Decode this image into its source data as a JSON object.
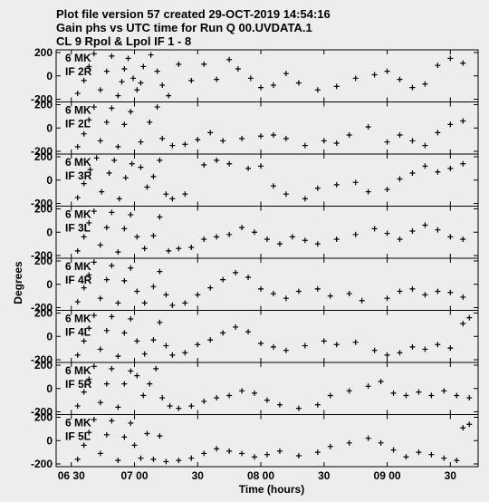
{
  "header": {
    "line1": "Plot file version 57  created 29-OCT-2019 14:54:16",
    "line2": "Gain phs vs UTC time for Run Q 00.UVDATA.1",
    "line3": "CL 9  Rpol & Lpol  IF 1 - 8"
  },
  "chart_data": {
    "type": "scatter",
    "marker": "plus",
    "marker_color": "#000000",
    "xlabel": "Time (hours)",
    "ylabel": "Degrees",
    "x_ticks": [
      "06 30",
      "07 00",
      "30",
      "08 00",
      "30",
      "09 00",
      "30"
    ],
    "x_tick_hours": [
      6.5,
      7.0,
      7.5,
      8.0,
      8.5,
      9.0,
      9.5
    ],
    "xlim": [
      6.38,
      9.72
    ],
    "ylim": [
      -200,
      200
    ],
    "y_ticks": [
      "200",
      "0",
      "-200"
    ],
    "panels": [
      {
        "antenna": "6 MK",
        "if_label": "IF 2R",
        "points": [
          [
            6.55,
            -150
          ],
          [
            6.6,
            -40
          ],
          [
            6.64,
            80
          ],
          [
            6.68,
            190
          ],
          [
            6.73,
            -120
          ],
          [
            6.78,
            40
          ],
          [
            6.82,
            170
          ],
          [
            6.87,
            -170
          ],
          [
            6.9,
            -50
          ],
          [
            6.92,
            60
          ],
          [
            6.95,
            150
          ],
          [
            6.99,
            -20
          ],
          [
            7.02,
            -120
          ],
          [
            7.05,
            -60
          ],
          [
            7.07,
            80
          ],
          [
            7.13,
            180
          ],
          [
            7.18,
            40
          ],
          [
            7.22,
            -80
          ],
          [
            7.27,
            -170
          ],
          [
            7.35,
            100
          ],
          [
            7.45,
            -40
          ],
          [
            7.55,
            100
          ],
          [
            7.65,
            -30
          ],
          [
            7.75,
            140
          ],
          [
            7.82,
            60
          ],
          [
            7.92,
            -20
          ],
          [
            8.0,
            -100
          ],
          [
            8.1,
            -80
          ],
          [
            8.2,
            20
          ],
          [
            8.3,
            -60
          ],
          [
            8.45,
            -120
          ],
          [
            8.6,
            -90
          ],
          [
            8.75,
            -20
          ],
          [
            8.9,
            10
          ],
          [
            9.0,
            40
          ],
          [
            9.1,
            -30
          ],
          [
            9.2,
            -100
          ],
          [
            9.3,
            -70
          ],
          [
            9.4,
            90
          ],
          [
            9.5,
            150
          ],
          [
            9.6,
            110
          ]
        ]
      },
      {
        "antenna": "6 MK",
        "if_label": "IF 2L",
        "points": [
          [
            6.55,
            -160
          ],
          [
            6.6,
            -50
          ],
          [
            6.64,
            70
          ],
          [
            6.68,
            180
          ],
          [
            6.73,
            -110
          ],
          [
            6.78,
            50
          ],
          [
            6.82,
            170
          ],
          [
            6.87,
            -160
          ],
          [
            6.92,
            30
          ],
          [
            6.97,
            140
          ],
          [
            7.05,
            -120
          ],
          [
            7.12,
            50
          ],
          [
            7.18,
            180
          ],
          [
            7.22,
            -90
          ],
          [
            7.3,
            -150
          ],
          [
            7.4,
            -140
          ],
          [
            7.5,
            -100
          ],
          [
            7.6,
            -40
          ],
          [
            7.7,
            -110
          ],
          [
            7.85,
            -90
          ],
          [
            8.0,
            -70
          ],
          [
            8.1,
            -60
          ],
          [
            8.2,
            -90
          ],
          [
            8.35,
            -150
          ],
          [
            8.5,
            -110
          ],
          [
            8.6,
            -130
          ],
          [
            8.7,
            -60
          ],
          [
            8.85,
            10
          ],
          [
            9.0,
            -120
          ],
          [
            9.1,
            -60
          ],
          [
            9.2,
            -110
          ],
          [
            9.3,
            -150
          ],
          [
            9.4,
            -40
          ],
          [
            9.5,
            30
          ],
          [
            9.6,
            60
          ]
        ]
      },
      {
        "antenna": "6 MK",
        "if_label": "IF 3R",
        "points": [
          [
            6.55,
            -150
          ],
          [
            6.6,
            -30
          ],
          [
            6.65,
            90
          ],
          [
            6.7,
            190
          ],
          [
            6.74,
            -100
          ],
          [
            6.8,
            60
          ],
          [
            6.84,
            170
          ],
          [
            6.88,
            -160
          ],
          [
            6.93,
            20
          ],
          [
            6.98,
            140
          ],
          [
            7.05,
            110
          ],
          [
            7.1,
            -60
          ],
          [
            7.15,
            30
          ],
          [
            7.2,
            170
          ],
          [
            7.25,
            -120
          ],
          [
            7.3,
            -160
          ],
          [
            7.4,
            -120
          ],
          [
            7.55,
            130
          ],
          [
            7.65,
            170
          ],
          [
            7.75,
            140
          ],
          [
            7.9,
            100
          ],
          [
            8.0,
            120
          ],
          [
            8.1,
            -50
          ],
          [
            8.2,
            -120
          ],
          [
            8.35,
            -160
          ],
          [
            8.45,
            -70
          ],
          [
            8.6,
            -40
          ],
          [
            8.75,
            -20
          ],
          [
            8.85,
            -100
          ],
          [
            9.0,
            -80
          ],
          [
            9.1,
            10
          ],
          [
            9.2,
            60
          ],
          [
            9.3,
            120
          ],
          [
            9.4,
            70
          ],
          [
            9.5,
            100
          ],
          [
            9.6,
            140
          ]
        ]
      },
      {
        "antenna": "6 MK",
        "if_label": "IF 3L",
        "points": [
          [
            6.55,
            -160
          ],
          [
            6.6,
            -40
          ],
          [
            6.64,
            80
          ],
          [
            6.68,
            180
          ],
          [
            6.73,
            -110
          ],
          [
            6.78,
            40
          ],
          [
            6.82,
            170
          ],
          [
            6.87,
            -170
          ],
          [
            6.92,
            30
          ],
          [
            6.97,
            150
          ],
          [
            7.02,
            -40
          ],
          [
            7.08,
            -140
          ],
          [
            7.15,
            -30
          ],
          [
            7.2,
            130
          ],
          [
            7.27,
            -160
          ],
          [
            7.35,
            -140
          ],
          [
            7.45,
            -130
          ],
          [
            7.55,
            -60
          ],
          [
            7.65,
            -40
          ],
          [
            7.75,
            -20
          ],
          [
            7.85,
            40
          ],
          [
            7.95,
            0
          ],
          [
            8.05,
            -60
          ],
          [
            8.15,
            -100
          ],
          [
            8.25,
            -40
          ],
          [
            8.35,
            -70
          ],
          [
            8.45,
            -100
          ],
          [
            8.6,
            -60
          ],
          [
            8.75,
            -20
          ],
          [
            8.9,
            30
          ],
          [
            9.0,
            -10
          ],
          [
            9.1,
            -60
          ],
          [
            9.2,
            10
          ],
          [
            9.3,
            60
          ],
          [
            9.4,
            20
          ],
          [
            9.5,
            -40
          ],
          [
            9.6,
            -60
          ]
        ]
      },
      {
        "antenna": "6 MK",
        "if_label": "IF 4R",
        "points": [
          [
            6.55,
            -150
          ],
          [
            6.6,
            -30
          ],
          [
            6.64,
            80
          ],
          [
            6.68,
            190
          ],
          [
            6.73,
            -120
          ],
          [
            6.78,
            40
          ],
          [
            6.82,
            160
          ],
          [
            6.87,
            -160
          ],
          [
            6.92,
            30
          ],
          [
            6.97,
            140
          ],
          [
            7.02,
            -60
          ],
          [
            7.08,
            -160
          ],
          [
            7.15,
            -20
          ],
          [
            7.2,
            110
          ],
          [
            7.25,
            -90
          ],
          [
            7.3,
            -180
          ],
          [
            7.4,
            -160
          ],
          [
            7.5,
            -90
          ],
          [
            7.6,
            -30
          ],
          [
            7.7,
            40
          ],
          [
            7.8,
            100
          ],
          [
            7.9,
            60
          ],
          [
            8.0,
            -40
          ],
          [
            8.1,
            -80
          ],
          [
            8.2,
            -120
          ],
          [
            8.3,
            -60
          ],
          [
            8.45,
            -40
          ],
          [
            8.55,
            -100
          ],
          [
            8.7,
            -80
          ],
          [
            8.8,
            -140
          ],
          [
            9.0,
            -120
          ],
          [
            9.1,
            -60
          ],
          [
            9.2,
            -40
          ],
          [
            9.3,
            -90
          ],
          [
            9.4,
            -60
          ],
          [
            9.5,
            -70
          ],
          [
            9.6,
            -110
          ]
        ]
      },
      {
        "antenna": "6 MK",
        "if_label": "IF 4L",
        "points": [
          [
            6.55,
            -160
          ],
          [
            6.6,
            -40
          ],
          [
            6.64,
            70
          ],
          [
            6.68,
            180
          ],
          [
            6.73,
            -110
          ],
          [
            6.78,
            50
          ],
          [
            6.82,
            170
          ],
          [
            6.87,
            -170
          ],
          [
            6.92,
            30
          ],
          [
            6.97,
            150
          ],
          [
            7.02,
            -40
          ],
          [
            7.08,
            -150
          ],
          [
            7.15,
            -30
          ],
          [
            7.2,
            120
          ],
          [
            7.25,
            -80
          ],
          [
            7.3,
            -160
          ],
          [
            7.4,
            -140
          ],
          [
            7.5,
            -70
          ],
          [
            7.6,
            -30
          ],
          [
            7.7,
            30
          ],
          [
            7.8,
            80
          ],
          [
            7.9,
            40
          ],
          [
            8.0,
            -60
          ],
          [
            8.1,
            -90
          ],
          [
            8.2,
            -120
          ],
          [
            8.35,
            -80
          ],
          [
            8.5,
            -40
          ],
          [
            8.6,
            -70
          ],
          [
            8.75,
            -50
          ],
          [
            8.9,
            -120
          ],
          [
            9.0,
            -160
          ],
          [
            9.1,
            -140
          ],
          [
            9.2,
            -90
          ],
          [
            9.3,
            -110
          ],
          [
            9.4,
            -70
          ],
          [
            9.5,
            -100
          ],
          [
            9.6,
            110
          ],
          [
            9.65,
            160
          ]
        ]
      },
      {
        "antenna": "6 MK",
        "if_label": "IF 5R",
        "points": [
          [
            6.55,
            -150
          ],
          [
            6.6,
            -30
          ],
          [
            6.64,
            80
          ],
          [
            6.68,
            190
          ],
          [
            6.73,
            -120
          ],
          [
            6.78,
            40
          ],
          [
            6.82,
            170
          ],
          [
            6.87,
            -160
          ],
          [
            6.92,
            40
          ],
          [
            6.97,
            150
          ],
          [
            7.02,
            110
          ],
          [
            7.07,
            -60
          ],
          [
            7.12,
            40
          ],
          [
            7.17,
            170
          ],
          [
            7.22,
            -80
          ],
          [
            7.28,
            -150
          ],
          [
            7.35,
            -170
          ],
          [
            7.45,
            -150
          ],
          [
            7.55,
            -110
          ],
          [
            7.65,
            -80
          ],
          [
            7.75,
            -60
          ],
          [
            7.85,
            -20
          ],
          [
            7.95,
            -40
          ],
          [
            8.05,
            -100
          ],
          [
            8.15,
            -140
          ],
          [
            8.3,
            -170
          ],
          [
            8.45,
            -140
          ],
          [
            8.55,
            -60
          ],
          [
            8.7,
            -20
          ],
          [
            8.85,
            20
          ],
          [
            8.95,
            60
          ],
          [
            9.05,
            -40
          ],
          [
            9.15,
            -60
          ],
          [
            9.25,
            -30
          ],
          [
            9.35,
            -60
          ],
          [
            9.45,
            -20
          ],
          [
            9.55,
            -60
          ],
          [
            9.65,
            -80
          ]
        ]
      },
      {
        "antenna": "6 MK",
        "if_label": "IF 5L",
        "points": [
          [
            6.55,
            -160
          ],
          [
            6.6,
            -40
          ],
          [
            6.64,
            70
          ],
          [
            6.68,
            180
          ],
          [
            6.73,
            -110
          ],
          [
            6.78,
            50
          ],
          [
            6.82,
            170
          ],
          [
            6.87,
            -170
          ],
          [
            6.92,
            30
          ],
          [
            6.97,
            150
          ],
          [
            7.0,
            -40
          ],
          [
            7.05,
            -150
          ],
          [
            7.1,
            60
          ],
          [
            7.15,
            -160
          ],
          [
            7.2,
            40
          ],
          [
            7.25,
            -180
          ],
          [
            7.35,
            -170
          ],
          [
            7.45,
            -150
          ],
          [
            7.55,
            -110
          ],
          [
            7.65,
            -70
          ],
          [
            7.75,
            -90
          ],
          [
            7.85,
            -110
          ],
          [
            7.95,
            -140
          ],
          [
            8.05,
            -120
          ],
          [
            8.15,
            -90
          ],
          [
            8.3,
            -130
          ],
          [
            8.45,
            -100
          ],
          [
            8.55,
            -50
          ],
          [
            8.7,
            -20
          ],
          [
            8.85,
            20
          ],
          [
            8.95,
            -20
          ],
          [
            9.05,
            -80
          ],
          [
            9.15,
            -140
          ],
          [
            9.25,
            -100
          ],
          [
            9.35,
            -120
          ],
          [
            9.45,
            -150
          ],
          [
            9.55,
            -170
          ],
          [
            9.6,
            110
          ],
          [
            9.65,
            140
          ]
        ]
      }
    ]
  }
}
